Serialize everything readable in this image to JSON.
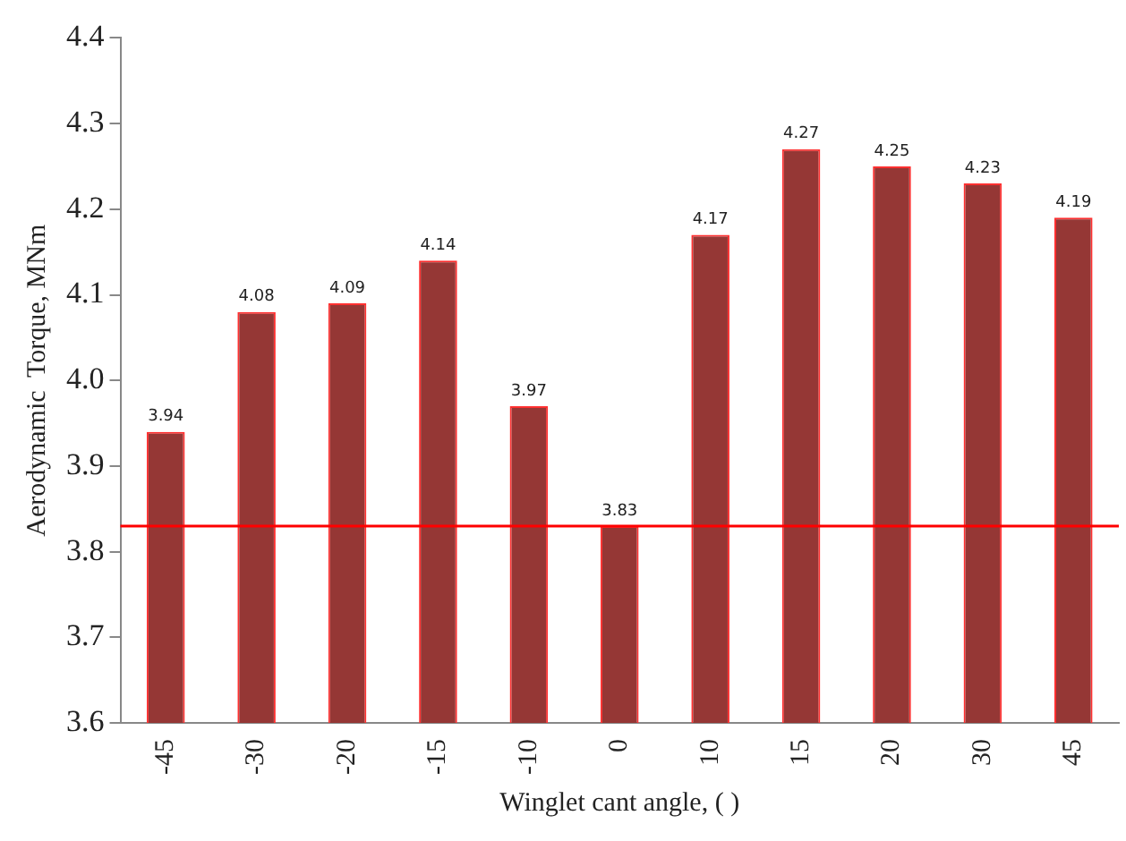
{
  "chart_data": {
    "type": "bar",
    "xlabel": "Winglet cant angle, ( )",
    "ylabel": "Aerodynamic  Torque, MNm",
    "categories": [
      "-45",
      "-30",
      "-20",
      "-15",
      "-10",
      "0",
      "10",
      "15",
      "20",
      "30",
      "45"
    ],
    "values": [
      3.94,
      4.08,
      4.09,
      4.14,
      3.97,
      3.83,
      4.17,
      4.27,
      4.25,
      4.23,
      4.19
    ],
    "color": "#953735",
    "ylim": [
      3.6,
      4.4
    ],
    "yticks": [
      "3.6",
      "3.7",
      "3.8",
      "3.9",
      "4.0",
      "4.1",
      "4.2",
      "4.3",
      "4.4"
    ],
    "ref_lines": [
      {
        "axis": "y",
        "value": 3.83,
        "color": "#ff0000"
      }
    ],
    "data_labels": true,
    "grid": false,
    "legend": false
  }
}
